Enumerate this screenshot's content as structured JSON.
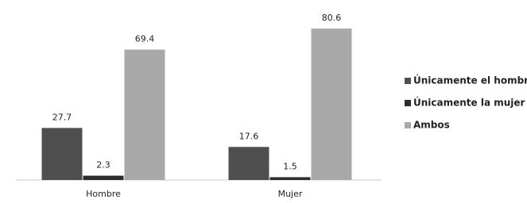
{
  "chart_data": {
    "type": "bar",
    "categories": [
      "Hombre",
      "Mujer"
    ],
    "series": [
      {
        "name": "Únicamente el hombre",
        "color": "#4f4f4f",
        "values": [
          27.7,
          17.6
        ]
      },
      {
        "name": "Únicamente la mujer",
        "color": "#2c2c2c",
        "values": [
          2.3,
          1.5
        ]
      },
      {
        "name": "Ambos",
        "color": "#a9a9a9",
        "values": [
          69.4,
          80.6
        ]
      }
    ]
  }
}
